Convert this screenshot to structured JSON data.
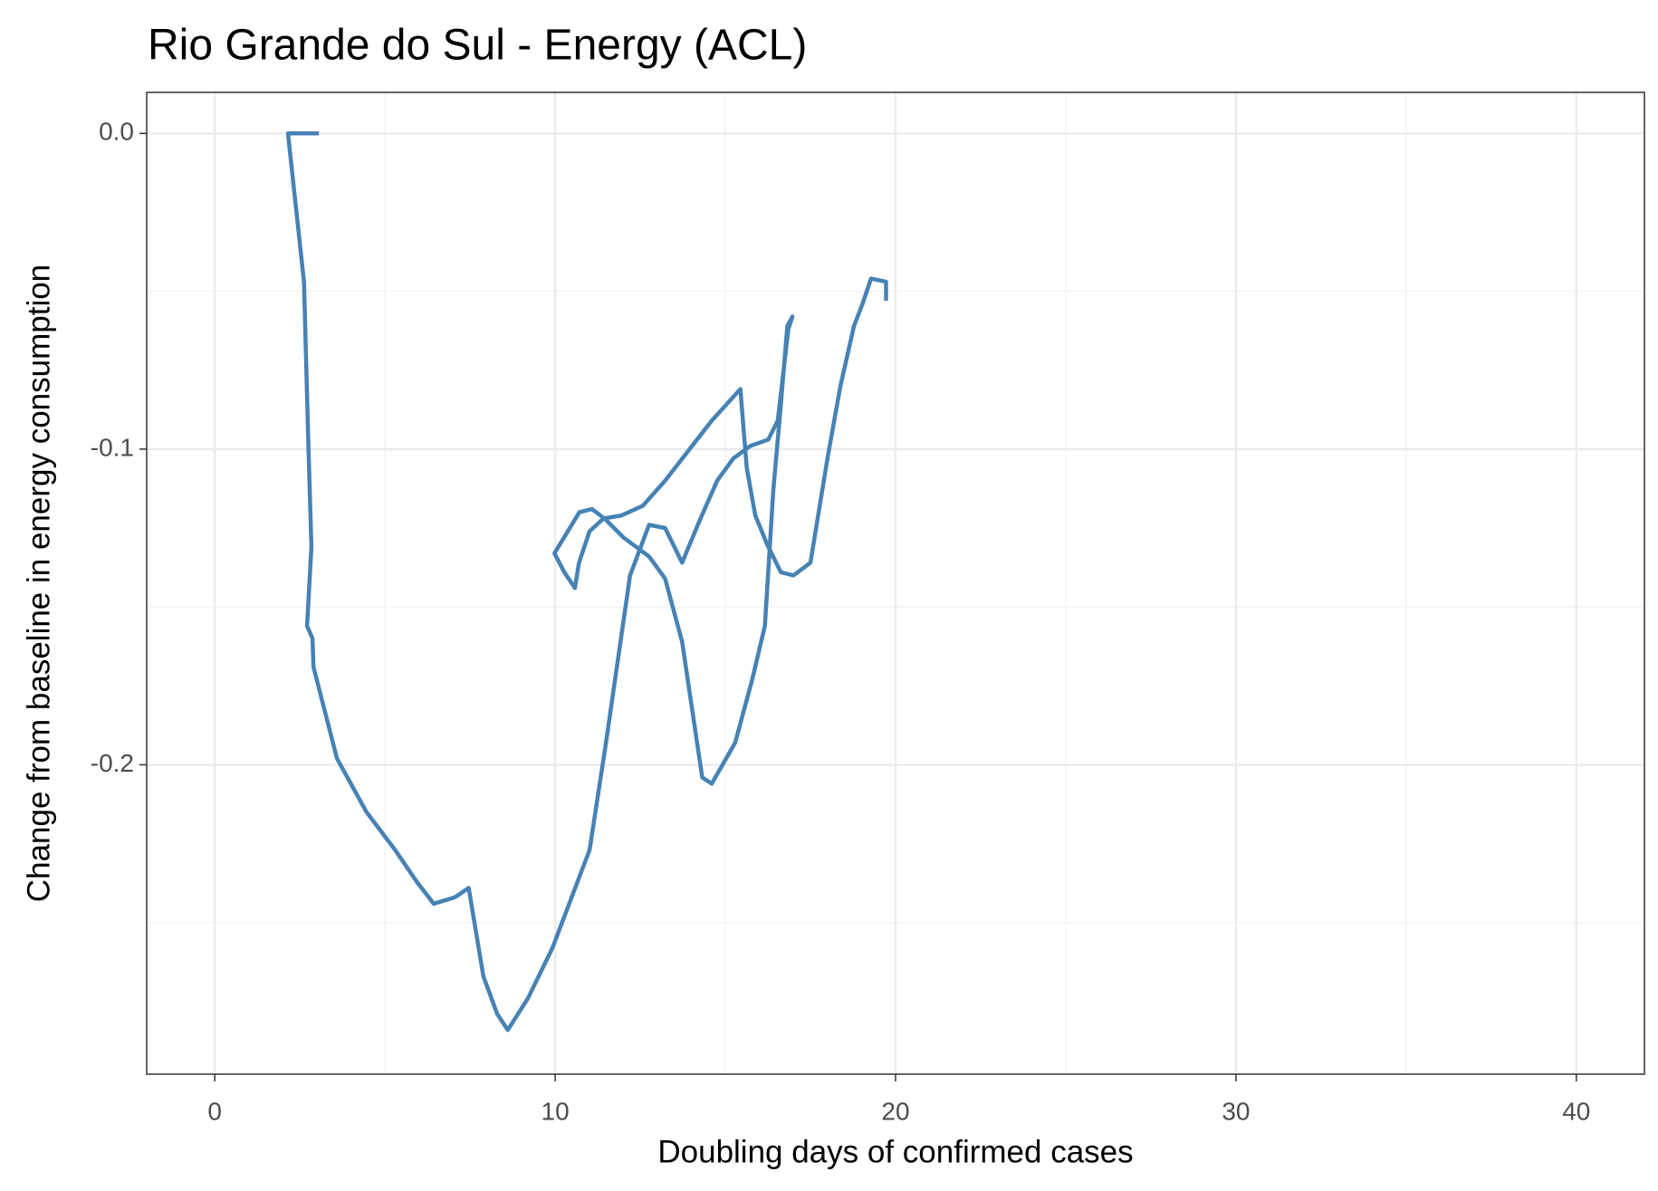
{
  "chart_data": {
    "type": "line",
    "title": "Rio Grande do Sul - Energy (ACL)",
    "x_label": "Doubling days of confirmed cases",
    "y_label": "Change from baseline in energy consumption",
    "grid": true,
    "xlim": [
      -2,
      42
    ],
    "ylim": [
      -0.298,
      0.013
    ],
    "xticks": [
      0,
      10,
      20,
      30,
      40
    ],
    "yticks": [
      {
        "value": 0,
        "label": "0.0"
      },
      -0.1,
      -0.2
    ],
    "series": [
      {
        "color": "#4682b4",
        "x": [
          3.06,
          2.15,
          2.62,
          2.75,
          2.84,
          2.71,
          2.87,
          2.9,
          3.59,
          4.46,
          5.3,
          5.93,
          6.43,
          7.05,
          7.46,
          7.89,
          8.3,
          8.61,
          9.2,
          9.92,
          11.01,
          11.48,
          12.2,
          12.76,
          13.23,
          13.73,
          14.23,
          14.76,
          15.23,
          15.73,
          16.26,
          16.54,
          16.85,
          16.97,
          16.82,
          16.63,
          16.41,
          16.16,
          15.79,
          15.29,
          14.6,
          14.32,
          13.73,
          13.23,
          12.76,
          12.01,
          11.45,
          11.08,
          10.71,
          9.98,
          10.27,
          10.58,
          10.7,
          11.01,
          11.42,
          11.95,
          12.57,
          13.23,
          14.6,
          15.44,
          15.63,
          15.88,
          16.22,
          16.63,
          17.0,
          17.5,
          18.0,
          18.38,
          18.78,
          19.03,
          19.28,
          19.72,
          19.72
        ],
        "values": [
          0,
          0,
          -0.047,
          -0.099,
          -0.131,
          -0.156,
          -0.16,
          -0.169,
          -0.198,
          -0.215,
          -0.227,
          -0.237,
          -0.244,
          -0.242,
          -0.239,
          -0.267,
          -0.279,
          -0.284,
          -0.274,
          -0.258,
          -0.227,
          -0.194,
          -0.14,
          -0.124,
          -0.125,
          -0.136,
          -0.123,
          -0.11,
          -0.103,
          -0.099,
          -0.097,
          -0.091,
          -0.062,
          -0.058,
          -0.061,
          -0.086,
          -0.113,
          -0.156,
          -0.173,
          -0.193,
          -0.206,
          -0.204,
          -0.161,
          -0.141,
          -0.134,
          -0.128,
          -0.122,
          -0.119,
          -0.12,
          -0.133,
          -0.139,
          -0.144,
          -0.136,
          -0.126,
          -0.122,
          -0.121,
          -0.118,
          -0.11,
          -0.091,
          -0.081,
          -0.106,
          -0.121,
          -0.13,
          -0.139,
          -0.14,
          -0.136,
          -0.103,
          -0.08,
          -0.061,
          -0.054,
          -0.046,
          -0.047,
          -0.053
        ]
      }
    ]
  }
}
